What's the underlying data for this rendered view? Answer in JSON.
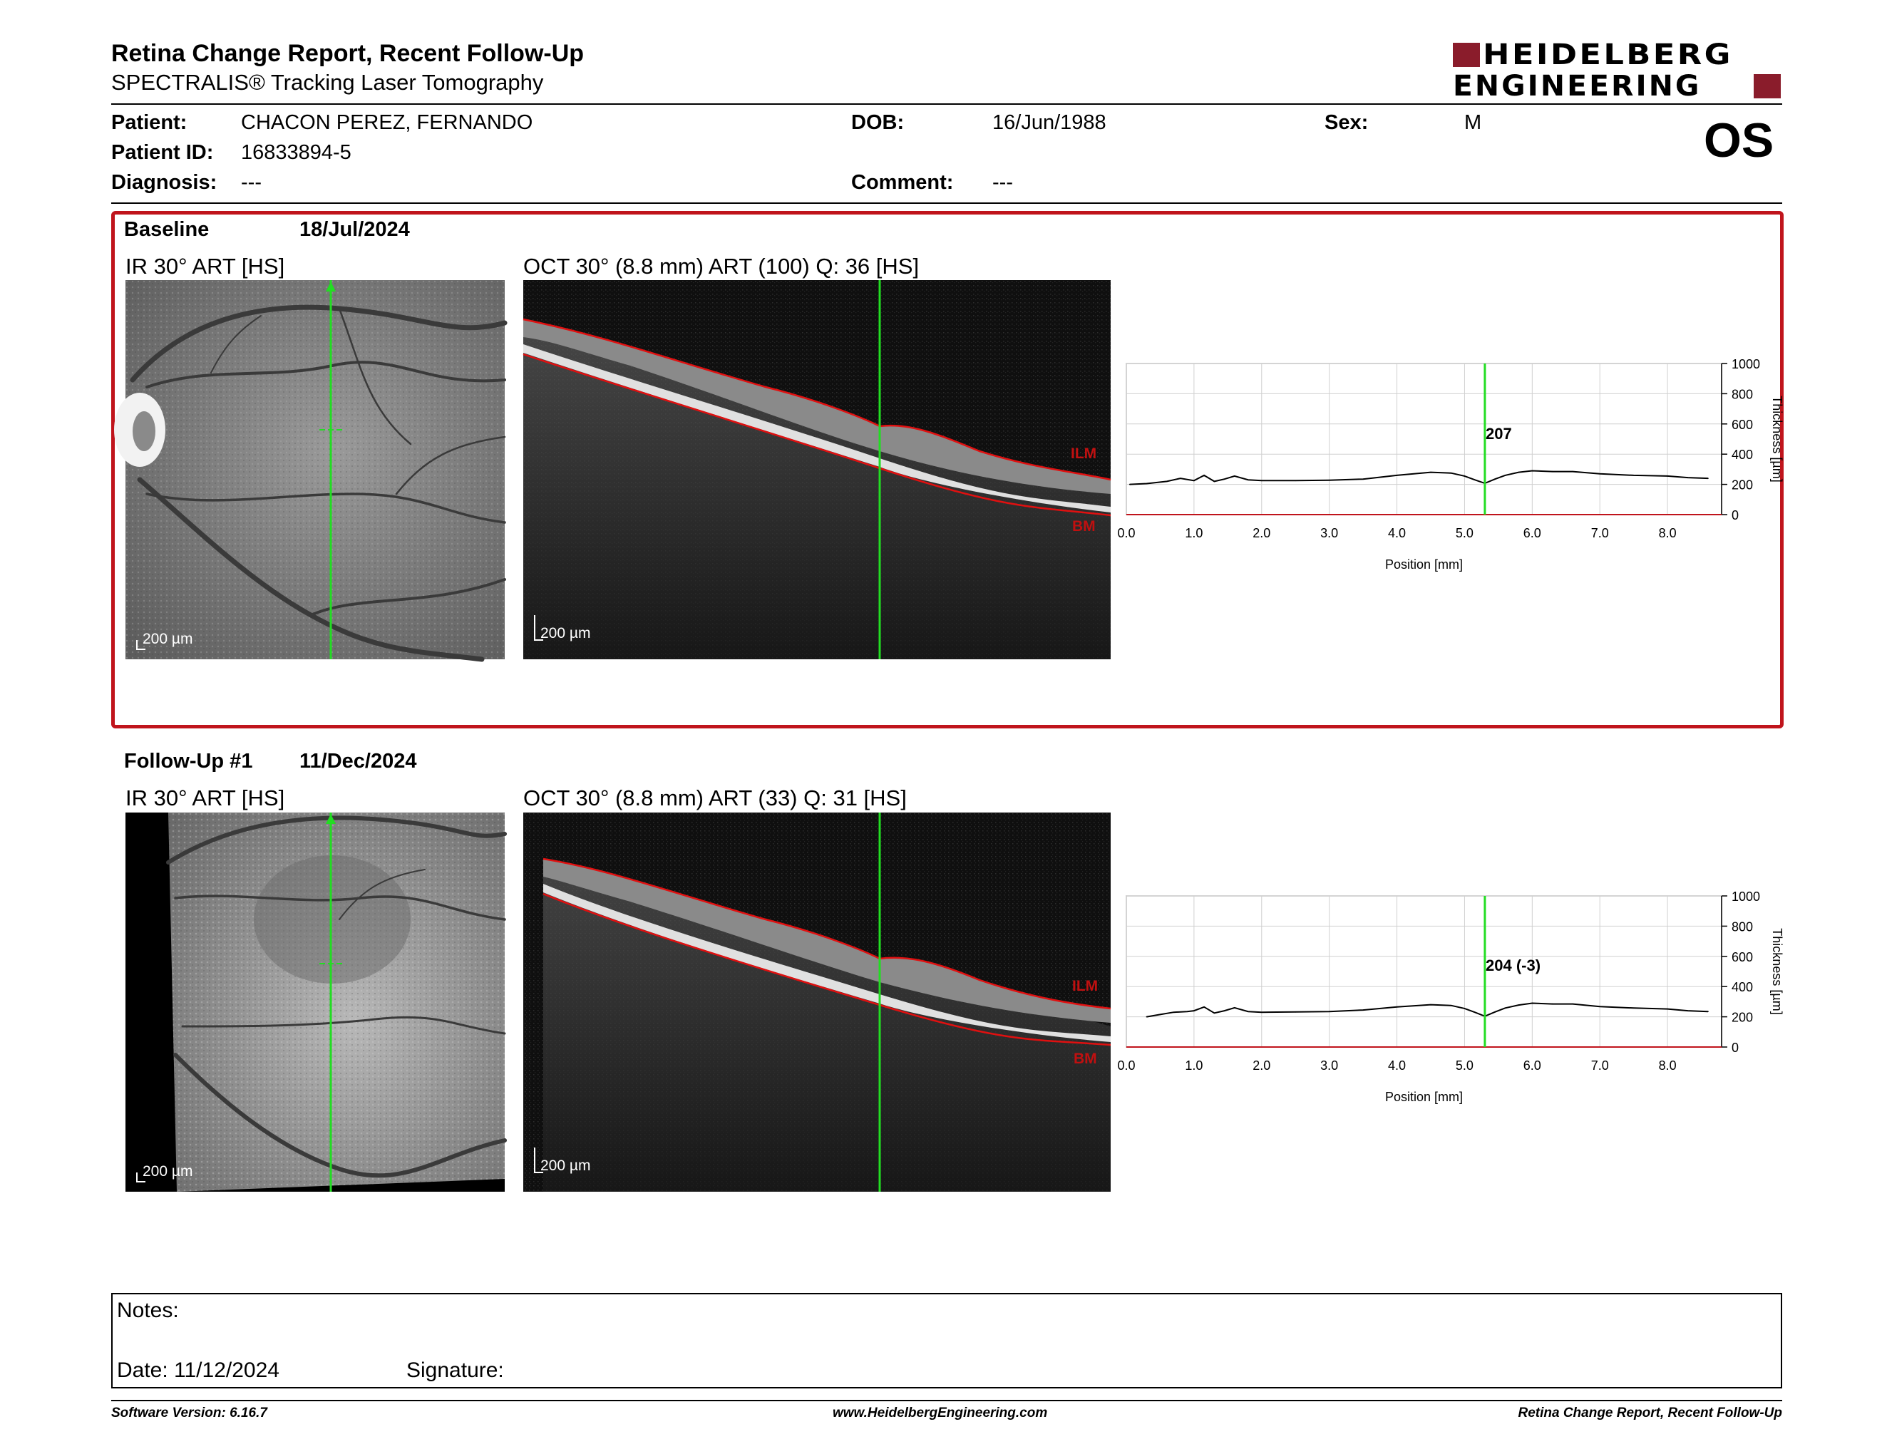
{
  "report": {
    "title": "Retina Change Report, Recent Follow-Up",
    "subtitle": "SPECTRALIS® Tracking Laser Tomography",
    "logo_line1": "HEIDELBERG",
    "logo_line2": "ENGINEERING",
    "eye": "OS"
  },
  "patient": {
    "name_label": "Patient:",
    "name": "CHACON PEREZ, FERNANDO",
    "id_label": "Patient ID:",
    "id": "16833894-5",
    "diagnosis_label": "Diagnosis:",
    "diagnosis": "---",
    "dob_label": "DOB:",
    "dob": "16/Jun/1988",
    "comment_label": "Comment:",
    "comment": "---",
    "sex_label": "Sex:",
    "sex": "M"
  },
  "baseline": {
    "label": "Baseline",
    "date": "18/Jul/2024",
    "ir_title": "IR 30° ART [HS]",
    "oct_title": "OCT 30° (8.8 mm) ART (100) Q: 36 [HS]",
    "scale_label": "200 µm",
    "ilm_label": "ILM",
    "bm_label": "BM",
    "thickness_marker": "207"
  },
  "followup": {
    "label": "Follow-Up #1",
    "date": "11/Dec/2024",
    "ir_title": "IR 30° ART [HS]",
    "oct_title": "OCT 30° (8.8 mm) ART (33) Q: 31 [HS]",
    "scale_label": "200 µm",
    "ilm_label": "ILM",
    "bm_label": "BM",
    "thickness_marker": "204 (-3)"
  },
  "notes": {
    "notes_label": "Notes:",
    "date_label": "Date: 11/12/2024",
    "signature_label": "Signature:"
  },
  "footer": {
    "left": "Software Version: 6.16.7",
    "center": "www.HeidelbergEngineering.com",
    "right": "Retina Change Report, Recent Follow-Up"
  },
  "colors": {
    "frame": "#c0141c",
    "brand": "#8a1c2b",
    "scan_line": "#22dd22",
    "segmentation": "#e01010"
  },
  "chart_data": [
    {
      "type": "line",
      "xlabel": "Position [mm]",
      "ylabel": "Thickness [µm]",
      "xlim": [
        0,
        8.8
      ],
      "ylim": [
        0,
        1000
      ],
      "x_ticks": [
        "0.0",
        "1.0",
        "2.0",
        "3.0",
        "4.0",
        "5.0",
        "6.0",
        "7.0",
        "8.0"
      ],
      "y_ticks": [
        "0",
        "200",
        "400",
        "600",
        "800",
        "1000"
      ],
      "marker_x": 5.3,
      "marker_label": "207",
      "grid": true,
      "x": [
        0.05,
        0.3,
        0.6,
        0.8,
        1.0,
        1.15,
        1.3,
        1.45,
        1.6,
        1.8,
        2.0,
        2.5,
        3.0,
        3.5,
        4.0,
        4.5,
        4.8,
        5.0,
        5.15,
        5.3,
        5.45,
        5.6,
        5.8,
        6.0,
        6.3,
        6.6,
        7.0,
        7.5,
        8.0,
        8.3,
        8.6
      ],
      "y": [
        200,
        205,
        220,
        240,
        225,
        260,
        220,
        235,
        255,
        230,
        225,
        225,
        228,
        235,
        260,
        280,
        275,
        255,
        230,
        207,
        235,
        260,
        280,
        290,
        285,
        285,
        270,
        260,
        255,
        245,
        240
      ]
    },
    {
      "type": "line",
      "xlabel": "Position [mm]",
      "ylabel": "Thickness [µm]",
      "xlim": [
        0,
        8.8
      ],
      "ylim": [
        0,
        1000
      ],
      "x_ticks": [
        "0.0",
        "1.0",
        "2.0",
        "3.0",
        "4.0",
        "5.0",
        "6.0",
        "7.0",
        "8.0"
      ],
      "y_ticks": [
        "0",
        "200",
        "400",
        "600",
        "800",
        "1000"
      ],
      "marker_x": 5.3,
      "marker_label": "204 (-3)",
      "grid": true,
      "x": [
        0.3,
        0.5,
        0.7,
        0.9,
        1.0,
        1.15,
        1.3,
        1.45,
        1.6,
        1.8,
        2.0,
        2.5,
        3.0,
        3.5,
        4.0,
        4.5,
        4.8,
        5.0,
        5.15,
        5.3,
        5.45,
        5.6,
        5.8,
        6.0,
        6.3,
        6.6,
        7.0,
        7.5,
        8.0,
        8.3,
        8.6
      ],
      "y": [
        200,
        215,
        230,
        235,
        240,
        265,
        225,
        240,
        260,
        235,
        230,
        232,
        235,
        245,
        265,
        280,
        275,
        255,
        230,
        204,
        232,
        258,
        278,
        290,
        285,
        285,
        268,
        258,
        252,
        240,
        235
      ]
    }
  ]
}
